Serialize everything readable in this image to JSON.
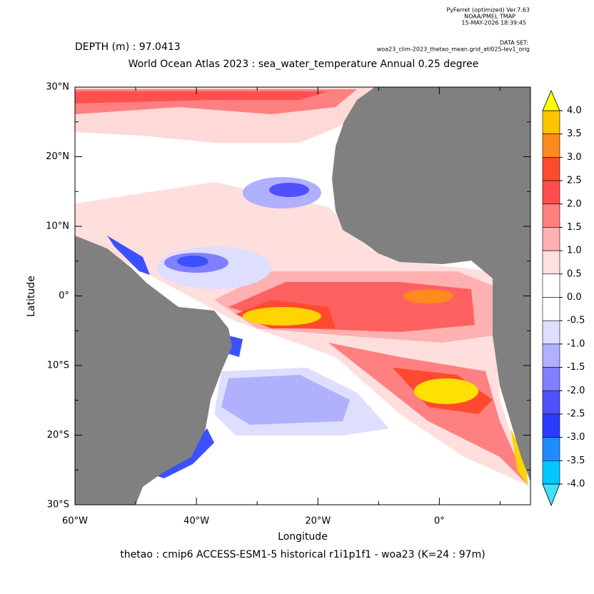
{
  "header": {
    "program": "PyFerret (optimized) Ver.7.63",
    "org": "NOAA/PMEL TMAP",
    "date": "15-MAY-2026 18:39:45",
    "dataset_label": "DATA SET:",
    "dataset": "woa23_clim-2023_thetao_mean.grid_atl025-lev1_orig"
  },
  "chart_data": {
    "type": "map",
    "depth_label": "DEPTH (m) : 97.0413",
    "title": "World Ocean Atlas 2023 : sea_water_temperature Annual  0.25 degree",
    "x_label": "Longitude",
    "y_label": "Latitude",
    "footer": "thetao : cmip6 ACCESS-ESM1-5 historical r1i1p1f1 - woa23  (K=24 : 97m)",
    "xlim": [
      -60,
      15
    ],
    "ylim": [
      -30,
      30
    ],
    "xticks": [
      {
        "value": -60,
        "label": "60°W"
      },
      {
        "value": -40,
        "label": "40°W"
      },
      {
        "value": -20,
        "label": "20°W"
      },
      {
        "value": 0,
        "label": "0°"
      }
    ],
    "xminorticks": [
      -50,
      -30,
      -10,
      10
    ],
    "yticks": [
      {
        "value": 30,
        "label": "30°N"
      },
      {
        "value": 20,
        "label": "20°N"
      },
      {
        "value": 10,
        "label": "10°N"
      },
      {
        "value": 0,
        "label": "0°"
      },
      {
        "value": -10,
        "label": "10°S"
      },
      {
        "value": -20,
        "label": "20°S"
      },
      {
        "value": -30,
        "label": "30°S"
      }
    ],
    "yminorticks": [
      25,
      15,
      5,
      -5,
      -15,
      -25
    ],
    "land_color": "#808080",
    "colorbar": {
      "levels": [
        {
          "value": 4,
          "label": "4.0"
        },
        {
          "value": 3.5,
          "label": "3.5"
        },
        {
          "value": 3,
          "label": "3.0"
        },
        {
          "value": 2.5,
          "label": "2.5"
        },
        {
          "value": 2,
          "label": "2.0"
        },
        {
          "value": 1.5,
          "label": "1.5"
        },
        {
          "value": 1,
          "label": "1.0"
        },
        {
          "value": 0.5,
          "label": "0.5"
        },
        {
          "value": 0,
          "label": "0.0"
        },
        {
          "value": -0.5,
          "label": "-0.5"
        },
        {
          "value": -1,
          "label": "-1.0"
        },
        {
          "value": -1.5,
          "label": "-1.5"
        },
        {
          "value": -2,
          "label": "-2.0"
        },
        {
          "value": -2.5,
          "label": "-2.5"
        },
        {
          "value": -3,
          "label": "-3.0"
        },
        {
          "value": -3.5,
          "label": "-3.5"
        },
        {
          "value": -4,
          "label": "-4.0"
        }
      ],
      "colors": [
        "#ffc400",
        "#ff8a1e",
        "#ff4a2e",
        "#ff4d4d",
        "#ff8080",
        "#ffb0b0",
        "#ffdede",
        "#ffffff",
        "#ffffff",
        "#dedeff",
        "#b0b0ff",
        "#8080ff",
        "#5050ff",
        "#2a3cff",
        "#1e8cff",
        "#00c8ff"
      ],
      "over_color": "#ffff00",
      "under_color": "#40e0ff"
    }
  }
}
